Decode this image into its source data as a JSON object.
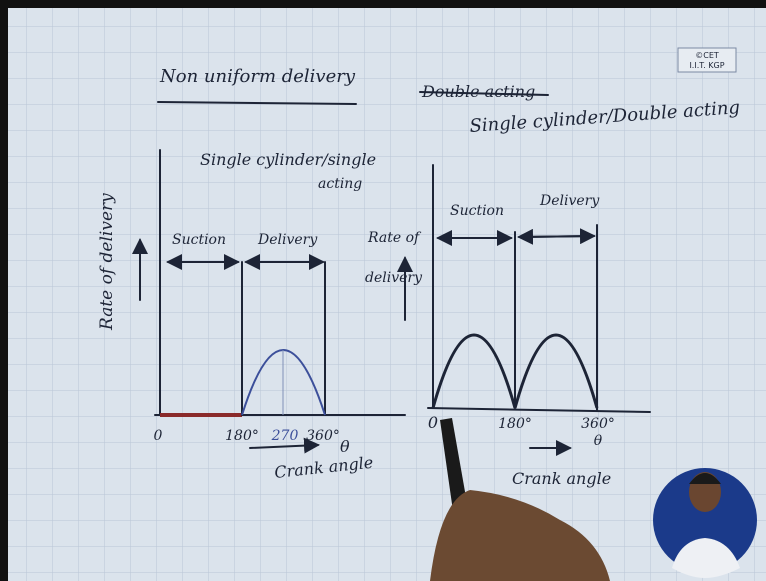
{
  "header": {
    "title": "Non uniform delivery",
    "struck_text": "Double acting",
    "subtitle": "Single cylinder/Double acting",
    "logo": [
      "©CET",
      "I.I.T. KGP"
    ]
  },
  "left_diagram": {
    "caption": [
      "Single cylinder/single",
      "acting"
    ],
    "y_label": "Rate of delivery",
    "phases": [
      "Suction",
      "Delivery"
    ],
    "x_labels": [
      "0",
      "180°",
      "270",
      "360°"
    ],
    "x_symbol": "θ",
    "x_title": "Crank angle"
  },
  "right_diagram": {
    "y_label": [
      "Rate of",
      "delivery"
    ],
    "phases": [
      "Suction",
      "Delivery"
    ],
    "x_labels": [
      "0",
      "180°",
      "360°"
    ],
    "x_symbol": "θ",
    "x_title": "Crank angle"
  }
}
